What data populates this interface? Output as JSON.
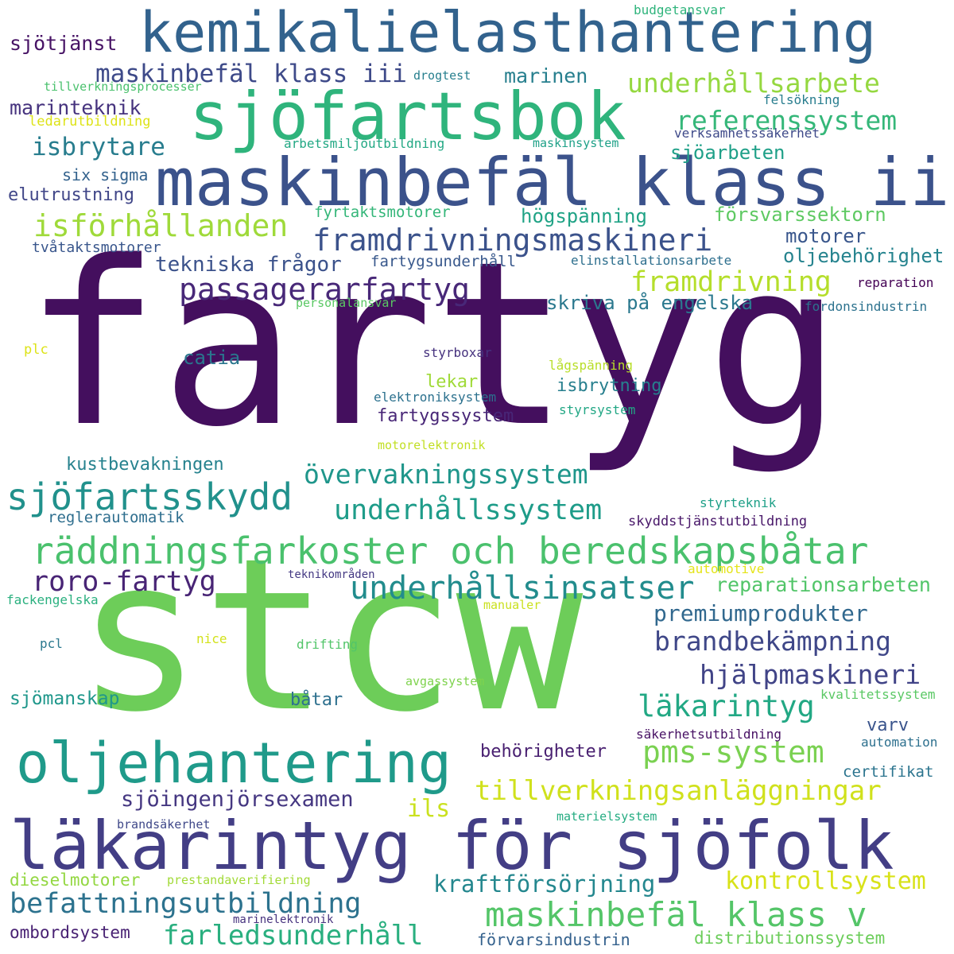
{
  "cloud": {
    "words": [
      {
        "text": "fartyg",
        "color": "#440f5e"
      },
      {
        "text": "stcw",
        "color": "#6dcd59"
      },
      {
        "text": "kemikalielasthantering",
        "color": "#32628d"
      },
      {
        "text": "sjöfartsbok",
        "color": "#2fb47c"
      },
      {
        "text": "maskinbefäl klass ii",
        "color": "#3b528b"
      },
      {
        "text": "läkarintyg för sjöfolk",
        "color": "#433e85"
      },
      {
        "text": "oljehantering",
        "color": "#1f9a8a"
      },
      {
        "text": "räddningsfarkoster och beredskapsbåtar",
        "color": "#4ac16d"
      },
      {
        "text": "sjöfartsskydd",
        "color": "#21918c"
      },
      {
        "text": "framdrivningsmaskineri",
        "color": "#3b528b"
      },
      {
        "text": "isförhållanden",
        "color": "#9fda3a"
      },
      {
        "text": "passagerarfartyg",
        "color": "#482878"
      },
      {
        "text": "underhållsarbete",
        "color": "#95d840"
      },
      {
        "text": "referenssystem",
        "color": "#35b779"
      },
      {
        "text": "maskinbefäl klass iii",
        "color": "#3e4a89"
      },
      {
        "text": "framdrivning",
        "color": "#b5de2b"
      },
      {
        "text": "övervakningssystem",
        "color": "#1f968b"
      },
      {
        "text": "underhållssystem",
        "color": "#1e9c89"
      },
      {
        "text": "underhållsinsatser",
        "color": "#228c8d"
      },
      {
        "text": "roro-fartyg",
        "color": "#482475"
      },
      {
        "text": "läkarintyg",
        "color": "#22a884"
      },
      {
        "text": "pms-system",
        "color": "#7ad151"
      },
      {
        "text": "tillverkningsanläggningar",
        "color": "#d0e11c"
      },
      {
        "text": "befattningsutbildning",
        "color": "#2c728e"
      },
      {
        "text": "maskinbefäl klass v",
        "color": "#54c568"
      },
      {
        "text": "farledsunderhåll",
        "color": "#29af7f"
      },
      {
        "text": "kontrollsystem",
        "color": "#d8e219"
      },
      {
        "text": "brandbekämpning",
        "color": "#3f4788"
      },
      {
        "text": "hjälpmaskineri",
        "color": "#414487"
      },
      {
        "text": "premiumprodukter",
        "color": "#31688e"
      },
      {
        "text": "reparationsarbeten",
        "color": "#52c569"
      },
      {
        "text": "kraftförsörjning",
        "color": "#24878e"
      },
      {
        "text": "sjöingenjörsexamen",
        "color": "#453781"
      },
      {
        "text": "isbrytare",
        "color": "#287d8e"
      },
      {
        "text": "sjötjänst",
        "color": "#471365"
      },
      {
        "text": "marinen",
        "color": "#277f8e"
      },
      {
        "text": "marinteknik",
        "color": "#46337e"
      },
      {
        "text": "tekniska frågor",
        "color": "#3b528b"
      },
      {
        "text": "skriva på engelska",
        "color": "#2a788e"
      },
      {
        "text": "motorer",
        "color": "#39568c"
      },
      {
        "text": "oljebehörighet",
        "color": "#25838e"
      },
      {
        "text": "försvarssektorn",
        "color": "#5ec962"
      },
      {
        "text": "högspänning",
        "color": "#20a386"
      },
      {
        "text": "sjöarbeten",
        "color": "#1fa088"
      },
      {
        "text": "catia",
        "color": "#2a768e"
      },
      {
        "text": "lekar",
        "color": "#a0da39"
      },
      {
        "text": "isbrytning",
        "color": "#277f8e"
      },
      {
        "text": "fartygssystem",
        "color": "#482677"
      },
      {
        "text": "kustbevakningen",
        "color": "#26828e"
      },
      {
        "text": "behörigheter",
        "color": "#481f70"
      },
      {
        "text": "varv",
        "color": "#3a548c"
      },
      {
        "text": "ils",
        "color": "#cae11f"
      },
      {
        "text": "sjömanskap",
        "color": "#1f978b"
      },
      {
        "text": "båtar",
        "color": "#2d708e"
      },
      {
        "text": "elutrustning",
        "color": "#404688"
      },
      {
        "text": "six sigma",
        "color": "#33628d"
      },
      {
        "text": "dieselmotorer",
        "color": "#93d741"
      },
      {
        "text": "ombordsystem",
        "color": "#482173"
      },
      {
        "text": "förvarsindustrin",
        "color": "#34618d"
      },
      {
        "text": "distributionssystem",
        "color": "#6ccd5a"
      },
      {
        "text": "fyrtaktsmotorer",
        "color": "#34b679"
      },
      {
        "text": "fartygsunderhåll",
        "color": "#38588c"
      },
      {
        "text": "tvåtaktsmotorer",
        "color": "#39568c"
      },
      {
        "text": "elinstallationsarbete",
        "color": "#2e6f8e"
      },
      {
        "text": "reglerautomatik",
        "color": "#2e6e8e"
      },
      {
        "text": "certifikat",
        "color": "#2b748e"
      },
      {
        "text": "automation",
        "color": "#2d708e"
      },
      {
        "text": "säkerhetsutbildning",
        "color": "#471164"
      },
      {
        "text": "kvalitetssystem",
        "color": "#5ac864"
      },
      {
        "text": "budgetansvar",
        "color": "#2fb47c"
      },
      {
        "text": "tillverkningsprocesser",
        "color": "#4ac16d"
      },
      {
        "text": "drogtest",
        "color": "#277f8e"
      },
      {
        "text": "ledarutbildning",
        "color": "#dde318"
      },
      {
        "text": "felsökning",
        "color": "#287d8e"
      },
      {
        "text": "verksamhetssäkerhet",
        "color": "#3e4989"
      },
      {
        "text": "arbetsmiljöutbildning",
        "color": "#22a884"
      },
      {
        "text": "maskinsystem",
        "color": "#1fa188"
      },
      {
        "text": "reparation",
        "color": "#440154"
      },
      {
        "text": "personalansvar",
        "color": "#5ac864"
      },
      {
        "text": "fordonsindustrin",
        "color": "#2c728e"
      },
      {
        "text": "plc",
        "color": "#dde318"
      },
      {
        "text": "styrboxar",
        "color": "#46327e"
      },
      {
        "text": "lågspänning",
        "color": "#b8de29"
      },
      {
        "text": "elektroniksystem",
        "color": "#2c718e"
      },
      {
        "text": "styrsystem",
        "color": "#22a785"
      },
      {
        "text": "motorelektronik",
        "color": "#c2df23"
      },
      {
        "text": "styrteknik",
        "color": "#1fa088"
      },
      {
        "text": "skyddstjänstutbildning",
        "color": "#481769"
      },
      {
        "text": "teknikområden",
        "color": "#443983"
      },
      {
        "text": "automotive",
        "color": "#e5e419"
      },
      {
        "text": "fackengelska",
        "color": "#2ab07f"
      },
      {
        "text": "manualer",
        "color": "#cae11f"
      },
      {
        "text": "pcl",
        "color": "#2a788e"
      },
      {
        "text": "nice",
        "color": "#d2e21b"
      },
      {
        "text": "drifting",
        "color": "#52c569"
      },
      {
        "text": "avgassystem",
        "color": "#7fd34e"
      },
      {
        "text": "brandsäkerhet",
        "color": "#3f4889"
      },
      {
        "text": "materielsystem",
        "color": "#25ac82"
      },
      {
        "text": "prestandaverifiering",
        "color": "#a2da37"
      },
      {
        "text": "marinelektronik",
        "color": "#46327e"
      }
    ]
  }
}
